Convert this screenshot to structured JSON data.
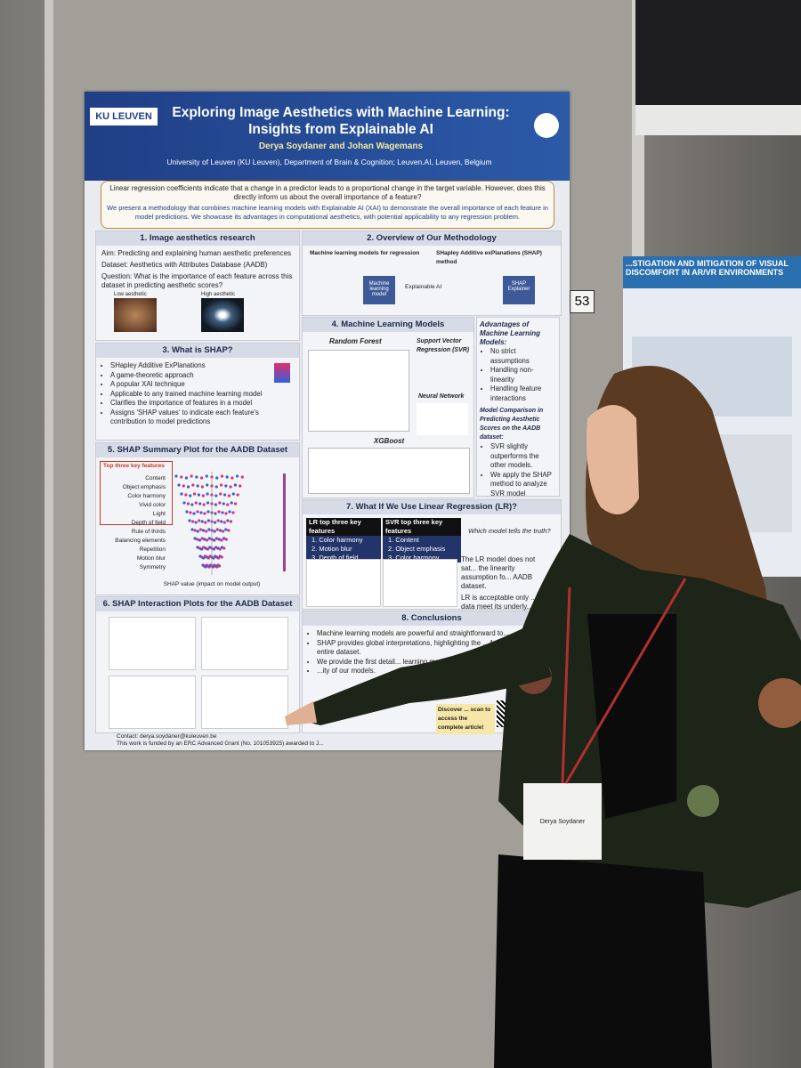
{
  "poster": {
    "logo": "KU LEUVEN",
    "title": "Exploring Image Aesthetics with Machine Learning: Insights from Explainable AI",
    "authors": "Derya Soydaner and Johan Wagemans",
    "affiliation": "University of Leuven (KU Leuven), Department of Brain & Cognition; Leuven.AI, Leuven, Belgium",
    "intro": [
      "Linear regression coefficients indicate that a change in a predictor leads to a proportional change in the target variable. However, does this directly inform us about the overall importance of a feature?",
      "We present a methodology that combines machine learning models with Explainable AI (XAI) to demonstrate the overall importance of each feature in model predictions. We showcase its advantages in computational aesthetics, with potential applicability to any regression problem."
    ],
    "section1": {
      "title": "1. Image aesthetics research",
      "lines": [
        "Aim: Predicting and explaining human aesthetic preferences",
        "Dataset: Aesthetics with Attributes Database (AADB)",
        "Question: What is the importance of each feature across this dataset in predicting aesthetic scores?"
      ],
      "images": [
        "Low aesthetic",
        "High aesthetic"
      ]
    },
    "section2": {
      "title": "2. Overview of Our Methodology",
      "left": "Machine learning models for regression",
      "right": "SHapley Additive exPlanations (SHAP) method",
      "boxes": [
        "Machine learning model",
        "Explainable AI",
        "SHAP Explainer"
      ]
    },
    "section3": {
      "title": "3. What is SHAP?",
      "bullets": [
        "SHapley Additive ExPlanations",
        "A game-theoretic approach",
        "A popular XAI technique",
        "Applicable to any trained machine learning model",
        "Clarifies the importance of features in a model",
        "Assigns 'SHAP values' to indicate each feature's contribution to model predictions"
      ]
    },
    "section4": {
      "title": "4. Machine Learning Models",
      "models": [
        "Random Forest",
        "Support Vector Regression (SVR)",
        "Neural Network",
        "XGBoost"
      ]
    },
    "advantages": {
      "title": "Advantages of Machine Learning Models:",
      "bullets": [
        "No strict assumptions",
        "Handling non-linearity",
        "Handling feature interactions"
      ],
      "comparison_title": "Model Comparison in Predicting Aesthetic Scores on the AADB dataset:",
      "findings": [
        "SVR slightly outperforms the other models.",
        "We apply the SHAP method to analyze SVR model predictions."
      ]
    },
    "section5": {
      "title": "5. SHAP Summary Plot for the AADB Dataset",
      "legend": "Top three key features",
      "features": [
        "Content",
        "Object emphasis",
        "Color harmony",
        "Vivid color",
        "Light",
        "Depth of field",
        "Rule of thirds",
        "Balancing elements",
        "Repetition",
        "Motion blur",
        "Symmetry"
      ],
      "xlabel": "SHAP value (impact on model output)"
    },
    "section6": {
      "title": "6. SHAP Interaction Plots for the AADB Dataset"
    },
    "section7": {
      "title": "7. What If We Use Linear Regression (LR)?",
      "lr_header": "LR top three key features",
      "lr_rows": [
        "1. Color harmony",
        "2. Motion blur",
        "3. Depth of field"
      ],
      "svr_header": "SVR top three key features",
      "svr_rows": [
        "1. Content",
        "2. Object emphasis",
        "3. Color harmony"
      ],
      "question": "Which model tells the truth?",
      "notes": [
        "The LR model does not sat... the linearity assumption fo... AADB dataset.",
        "LR is acceptable only ... data meet its underly... assumptions."
      ]
    },
    "section8": {
      "title": "8. Conclusions",
      "bullets": [
        "Machine learning models are powerful and straightforward to...",
        "SHAP provides global interpretations, highlighting the ... feature across the entire dataset.",
        "We provide the first detail... learning mode...",
        "...ity of our models."
      ],
      "discover": "Discover ... scan to access the complete article!"
    },
    "footer": {
      "contact": "Contact: derya.soydaner@kuleuven.be",
      "funding": "This work is funded by an ERC Advanced Grant (No. 101053925) awarded to J..."
    }
  },
  "board_number": "53",
  "neighbor_poster": {
    "title": "...STIGATION AND MITIGATION OF VISUAL DISCOMFORT IN AR/VR ENVIRONMENTS"
  },
  "badge": {
    "name": "Derya Soydaner"
  }
}
